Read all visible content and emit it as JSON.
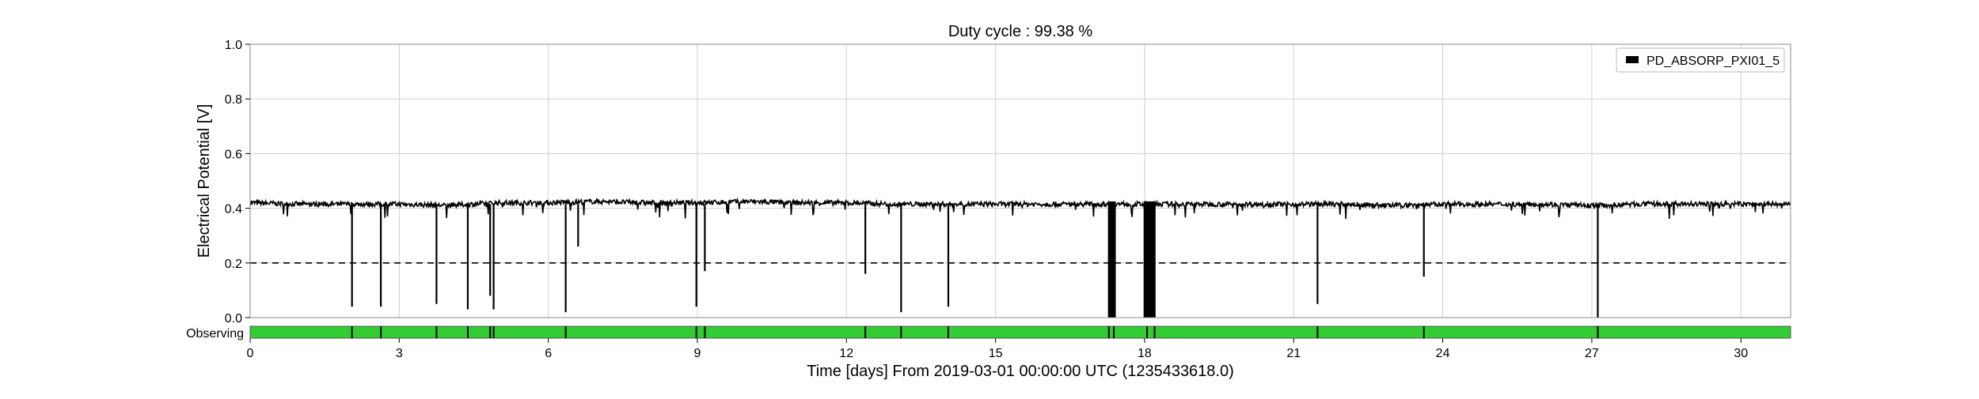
{
  "chart_data": {
    "type": "line",
    "title": "Duty cycle : 99.38 %",
    "xlabel": "Time [days] From 2019-03-01 00:00:00 UTC (1235433618.0)",
    "ylabel": "Electrical Potential [V]",
    "xlim": [
      0,
      31
    ],
    "ylim": [
      0,
      1.0
    ],
    "x_ticks": [
      0,
      3,
      6,
      9,
      12,
      15,
      18,
      21,
      24,
      27,
      30
    ],
    "y_ticks": [
      0.0,
      0.2,
      0.4,
      0.6,
      0.8,
      1.0
    ],
    "x_tick_labels": [
      "0",
      "3",
      "6",
      "9",
      "12",
      "15",
      "18",
      "21",
      "24",
      "27",
      "30"
    ],
    "y_tick_labels": [
      "0.0",
      "0.2",
      "0.4",
      "0.6",
      "0.8",
      "1.0"
    ],
    "grid": true,
    "legend_position": "top-right",
    "series": [
      {
        "name": "PD_ABSORP_PXI01_5",
        "color": "#000000",
        "baseline": 0.415,
        "x": [
          0,
          1,
          2,
          3,
          4,
          5,
          6,
          7,
          8,
          9,
          10,
          11,
          12,
          13,
          14,
          15,
          16,
          17,
          18,
          19,
          20,
          21,
          22,
          23,
          24,
          25,
          26,
          27,
          28,
          29,
          30,
          31
        ],
        "y": [
          0.42,
          0.415,
          0.415,
          0.415,
          0.41,
          0.42,
          0.42,
          0.425,
          0.42,
          0.42,
          0.425,
          0.42,
          0.42,
          0.415,
          0.415,
          0.415,
          0.415,
          0.415,
          0.415,
          0.415,
          0.415,
          0.415,
          0.415,
          0.41,
          0.415,
          0.415,
          0.415,
          0.41,
          0.415,
          0.415,
          0.415,
          0.415
        ],
        "dips": [
          {
            "x": 2.05,
            "y": 0.04
          },
          {
            "x": 2.63,
            "y": 0.04
          },
          {
            "x": 3.75,
            "y": 0.05
          },
          {
            "x": 4.38,
            "y": 0.03
          },
          {
            "x": 4.83,
            "y": 0.08
          },
          {
            "x": 4.9,
            "y": 0.03
          },
          {
            "x": 6.35,
            "y": 0.02
          },
          {
            "x": 6.6,
            "y": 0.26
          },
          {
            "x": 8.98,
            "y": 0.04
          },
          {
            "x": 9.15,
            "y": 0.17
          },
          {
            "x": 12.38,
            "y": 0.16
          },
          {
            "x": 13.1,
            "y": 0.02
          },
          {
            "x": 14.05,
            "y": 0.04
          },
          {
            "x": 17.28,
            "y": 0.0
          },
          {
            "x": 17.38,
            "y": 0.0
          },
          {
            "x": 18.05,
            "y": 0.0
          },
          {
            "x": 18.2,
            "y": 0.0
          },
          {
            "x": 21.48,
            "y": 0.05
          },
          {
            "x": 23.62,
            "y": 0.15
          },
          {
            "x": 27.12,
            "y": 0.0
          }
        ],
        "outages": [
          {
            "x0": 17.28,
            "x1": 17.42
          },
          {
            "x0": 17.98,
            "x1": 18.22
          }
        ]
      }
    ],
    "reference_line": {
      "y": 0.2,
      "style": "dashed",
      "color": "#000000"
    },
    "segment_bar": {
      "label": "Observing",
      "color": "#32cd32",
      "gap_color": "#000000",
      "gaps": [
        2.05,
        2.63,
        3.75,
        4.38,
        4.83,
        4.9,
        6.35,
        8.98,
        9.15,
        12.38,
        13.1,
        14.05,
        17.28,
        17.38,
        18.05,
        18.2,
        21.48,
        23.62,
        27.12
      ]
    }
  }
}
